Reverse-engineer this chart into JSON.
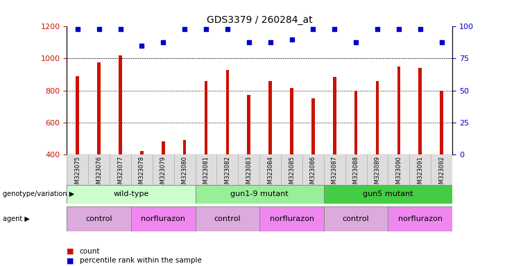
{
  "title": "GDS3379 / 260284_at",
  "samples": [
    "GSM323075",
    "GSM323076",
    "GSM323077",
    "GSM323078",
    "GSM323079",
    "GSM323080",
    "GSM323081",
    "GSM323082",
    "GSM323083",
    "GSM323084",
    "GSM323085",
    "GSM323086",
    "GSM323087",
    "GSM323088",
    "GSM323089",
    "GSM323090",
    "GSM323091",
    "GSM323092"
  ],
  "counts": [
    890,
    975,
    1020,
    420,
    480,
    490,
    860,
    930,
    770,
    860,
    815,
    750,
    885,
    800,
    860,
    950,
    940,
    800
  ],
  "percentile_ranks": [
    98,
    98,
    98,
    85,
    88,
    98,
    98,
    98,
    88,
    88,
    90,
    98,
    98,
    88,
    98,
    98,
    98,
    88
  ],
  "bar_color": "#CC1100",
  "dot_color": "#0000CC",
  "ylim_left": [
    400,
    1200
  ],
  "ylim_right": [
    0,
    100
  ],
  "yticks_left": [
    400,
    600,
    800,
    1000,
    1200
  ],
  "yticks_right": [
    0,
    25,
    50,
    75,
    100
  ],
  "grid_values": [
    600,
    800,
    1000
  ],
  "genotype_groups": [
    {
      "label": "wild-type",
      "start": 0,
      "end": 5,
      "color": "#CCFFCC"
    },
    {
      "label": "gun1-9 mutant",
      "start": 6,
      "end": 11,
      "color": "#99EE99"
    },
    {
      "label": "gun5 mutant",
      "start": 12,
      "end": 17,
      "color": "#44CC44"
    }
  ],
  "agent_groups": [
    {
      "label": "control",
      "start": 0,
      "end": 2,
      "color": "#DDAADD"
    },
    {
      "label": "norflurazon",
      "start": 3,
      "end": 5,
      "color": "#EE88EE"
    },
    {
      "label": "control",
      "start": 6,
      "end": 8,
      "color": "#DDAADD"
    },
    {
      "label": "norflurazon",
      "start": 9,
      "end": 11,
      "color": "#EE88EE"
    },
    {
      "label": "control",
      "start": 12,
      "end": 14,
      "color": "#DDAADD"
    },
    {
      "label": "norflurazon",
      "start": 15,
      "end": 17,
      "color": "#EE88EE"
    }
  ],
  "background_color": "#FFFFFF",
  "bar_width": 0.15
}
